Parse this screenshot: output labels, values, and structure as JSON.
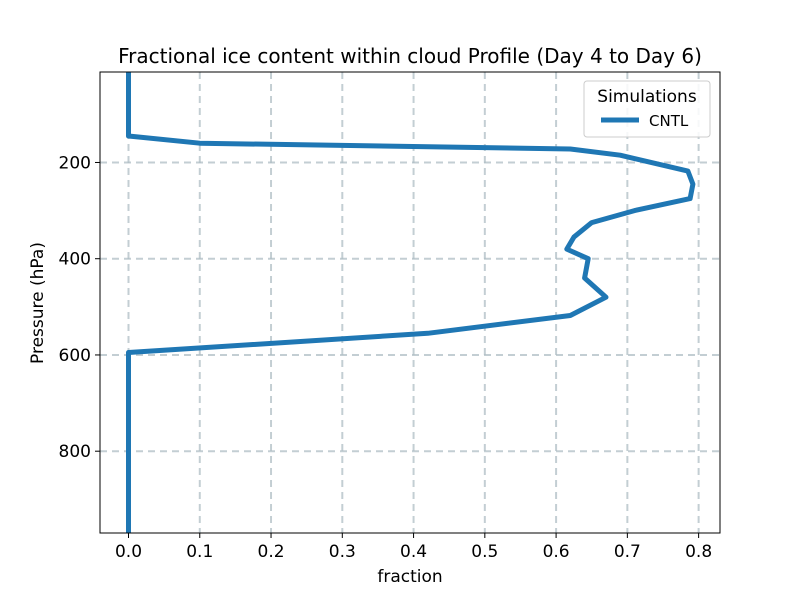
{
  "chart_data": {
    "type": "line",
    "title": "Fractional ice content within cloud Profile (Day 4 to Day 6)",
    "xlabel": "fraction",
    "ylabel": "Pressure (hPa)",
    "xlim": [
      -0.04,
      0.83
    ],
    "ylim": [
      970,
      12
    ],
    "y_inverted": true,
    "grid": true,
    "xticks": [
      0.0,
      0.1,
      0.2,
      0.3,
      0.4,
      0.5,
      0.6,
      0.7,
      0.8
    ],
    "xtick_labels": [
      "0.0",
      "0.1",
      "0.2",
      "0.3",
      "0.4",
      "0.5",
      "0.6",
      "0.7",
      "0.8"
    ],
    "yticks": [
      200,
      400,
      600,
      800
    ],
    "ytick_labels": [
      "200",
      "400",
      "600",
      "800"
    ],
    "legend": {
      "title": "Simulations",
      "location": "top-right"
    },
    "series": [
      {
        "name": "CNTL",
        "color": "#1f77b4",
        "x": [
          0.0,
          0.0,
          0.0,
          0.1,
          0.62,
          0.69,
          0.785,
          0.792,
          0.788,
          0.71,
          0.65,
          0.625,
          0.615,
          0.645,
          0.64,
          0.67,
          0.62,
          0.42,
          0.0,
          0.0,
          0.0,
          0.0,
          0.0
        ],
        "y": [
          12,
          100,
          145,
          160,
          172,
          185,
          218,
          245,
          275,
          300,
          325,
          355,
          380,
          400,
          440,
          480,
          518,
          555,
          595,
          650,
          750,
          850,
          970
        ]
      }
    ]
  }
}
